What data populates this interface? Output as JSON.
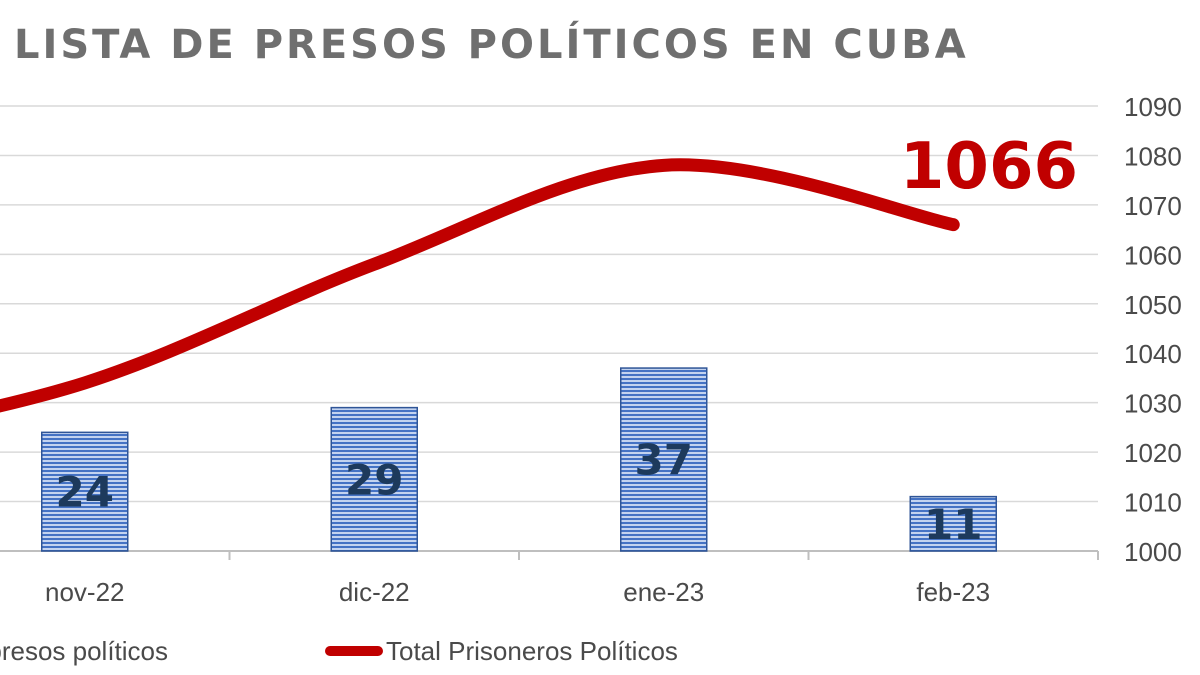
{
  "chart_data": {
    "type": "bar",
    "title": "LISTA DE PRESOS POLÍTICOS EN CUBA",
    "categories": [
      "nov-22",
      "dic-22",
      "ene-23",
      "feb-23"
    ],
    "series": [
      {
        "name": "Nuevos presos políticos",
        "type": "bar",
        "values": [
          24,
          29,
          37,
          11
        ],
        "color": "#4472c4"
      },
      {
        "name": "Total Prisoneros Políticos",
        "type": "line",
        "values": [
          1034,
          1058,
          1078,
          1066
        ],
        "color": "#c00000"
      }
    ],
    "ylim": [
      1000,
      1090
    ],
    "yticks": [
      1000,
      1010,
      1020,
      1030,
      1040,
      1050,
      1060,
      1070,
      1080,
      1090
    ],
    "y_axis_side": "right",
    "grid": true,
    "legend_position": "bottom",
    "annotation": "1066"
  }
}
